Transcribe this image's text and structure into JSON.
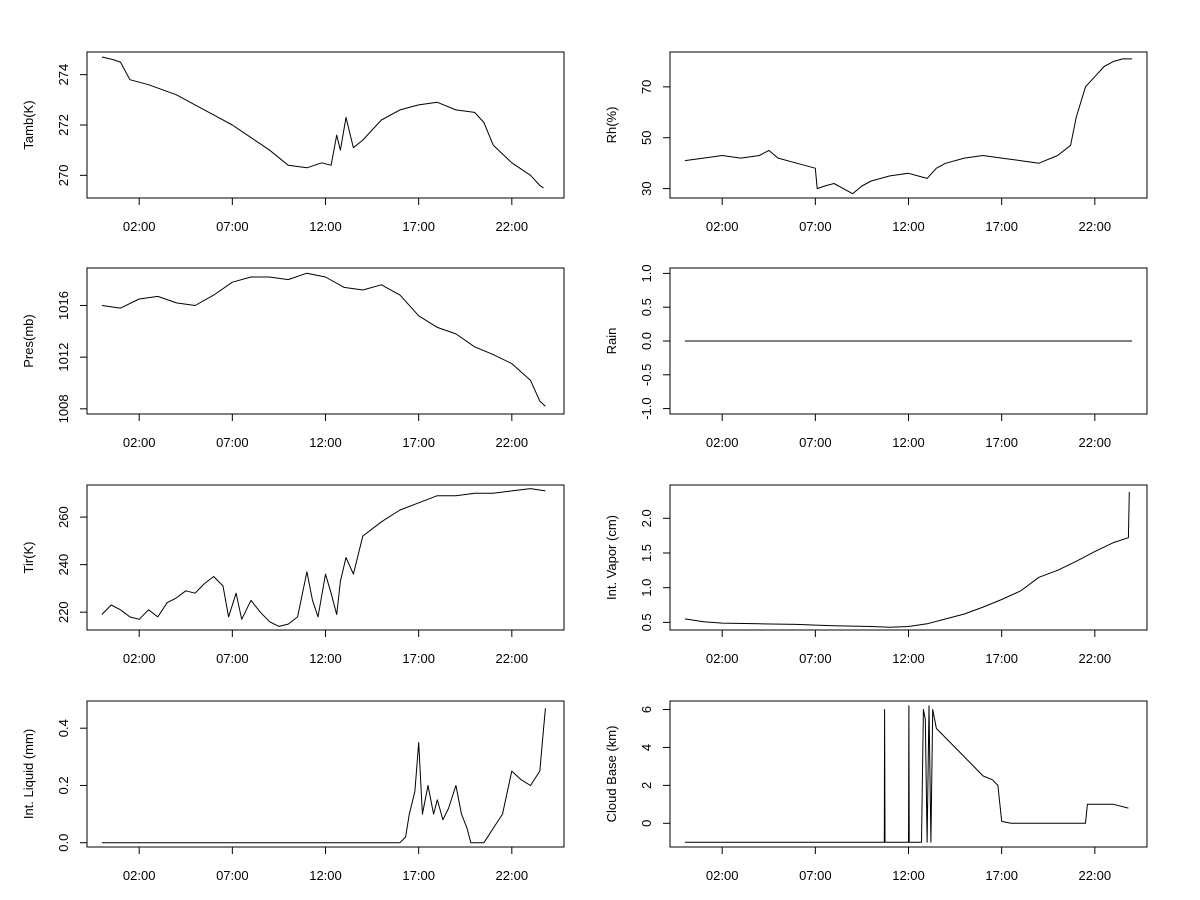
{
  "chart_data": [
    {
      "type": "line",
      "ylabel": "Tamb(K)",
      "x_ticks": [
        "02:00",
        "07:00",
        "12:00",
        "17:00",
        "22:00"
      ],
      "x_range_hours": [
        -0.8,
        24.8
      ],
      "y_ticks": [
        270,
        272,
        274
      ],
      "ylim": [
        269.1,
        274.9
      ],
      "series": [
        {
          "points": [
            [
              0.0,
              274.7
            ],
            [
              0.6,
              274.6
            ],
            [
              1.0,
              274.5
            ],
            [
              1.5,
              273.8
            ],
            [
              2.5,
              273.6
            ],
            [
              4.0,
              273.2
            ],
            [
              5.0,
              272.8
            ],
            [
              6.0,
              272.4
            ],
            [
              7.0,
              272.0
            ],
            [
              8.0,
              271.5
            ],
            [
              9.0,
              271.0
            ],
            [
              9.5,
              270.7
            ],
            [
              10.0,
              270.4
            ],
            [
              11.0,
              270.3
            ],
            [
              11.8,
              270.5
            ],
            [
              12.3,
              270.4
            ],
            [
              12.6,
              271.6
            ],
            [
              12.8,
              271.0
            ],
            [
              13.1,
              272.3
            ],
            [
              13.5,
              271.1
            ],
            [
              14.0,
              271.4
            ],
            [
              15.0,
              272.2
            ],
            [
              16.0,
              272.6
            ],
            [
              17.0,
              272.8
            ],
            [
              18.0,
              272.9
            ],
            [
              19.0,
              272.6
            ],
            [
              20.0,
              272.5
            ],
            [
              20.5,
              272.1
            ],
            [
              21.0,
              271.2
            ],
            [
              22.0,
              270.5
            ],
            [
              23.0,
              270.0
            ],
            [
              23.5,
              269.6
            ],
            [
              23.7,
              269.5
            ]
          ]
        }
      ]
    },
    {
      "type": "line",
      "ylabel": "Rh(%)",
      "x_ticks": [
        "02:00",
        "07:00",
        "12:00",
        "17:00",
        "22:00"
      ],
      "x_range_hours": [
        -0.8,
        24.8
      ],
      "y_ticks": [
        30,
        50,
        70
      ],
      "ylim": [
        26.3,
        83.7
      ],
      "series": [
        {
          "points": [
            [
              0.0,
              41
            ],
            [
              1.0,
              42
            ],
            [
              2.0,
              43
            ],
            [
              3.0,
              42
            ],
            [
              4.0,
              43
            ],
            [
              4.5,
              45
            ],
            [
              5.0,
              42
            ],
            [
              6.0,
              40
            ],
            [
              6.5,
              39
            ],
            [
              7.0,
              38
            ],
            [
              7.1,
              30
            ],
            [
              7.5,
              31
            ],
            [
              8.0,
              32
            ],
            [
              8.5,
              30
            ],
            [
              9.0,
              28
            ],
            [
              9.5,
              31
            ],
            [
              10.0,
              33
            ],
            [
              11.0,
              35
            ],
            [
              12.0,
              36
            ],
            [
              12.5,
              35
            ],
            [
              13.0,
              34
            ],
            [
              13.5,
              38
            ],
            [
              14.0,
              40
            ],
            [
              15.0,
              42
            ],
            [
              16.0,
              43
            ],
            [
              17.0,
              42
            ],
            [
              18.0,
              41
            ],
            [
              19.0,
              40
            ],
            [
              20.0,
              43
            ],
            [
              20.7,
              47
            ],
            [
              21.0,
              58
            ],
            [
              21.5,
              70
            ],
            [
              22.0,
              74
            ],
            [
              22.5,
              78
            ],
            [
              23.0,
              80
            ],
            [
              23.5,
              81
            ],
            [
              24.0,
              81
            ]
          ]
        }
      ]
    },
    {
      "type": "line",
      "ylabel": "Pres(mb)",
      "x_ticks": [
        "02:00",
        "07:00",
        "12:00",
        "17:00",
        "22:00"
      ],
      "x_range_hours": [
        -0.8,
        24.8
      ],
      "y_ticks": [
        1008,
        1012,
        1016
      ],
      "ylim": [
        1007.6,
        1018.9
      ],
      "series": [
        {
          "points": [
            [
              0.0,
              1016.0
            ],
            [
              1.0,
              1015.8
            ],
            [
              2.0,
              1016.5
            ],
            [
              3.0,
              1016.7
            ],
            [
              4.0,
              1016.2
            ],
            [
              5.0,
              1016.0
            ],
            [
              6.0,
              1016.8
            ],
            [
              7.0,
              1017.8
            ],
            [
              8.0,
              1018.2
            ],
            [
              9.0,
              1018.2
            ],
            [
              10.0,
              1018.0
            ],
            [
              11.0,
              1018.5
            ],
            [
              12.0,
              1018.2
            ],
            [
              13.0,
              1017.4
            ],
            [
              14.0,
              1017.2
            ],
            [
              15.0,
              1017.6
            ],
            [
              16.0,
              1016.8
            ],
            [
              17.0,
              1015.2
            ],
            [
              18.0,
              1014.3
            ],
            [
              19.0,
              1013.8
            ],
            [
              20.0,
              1012.8
            ],
            [
              21.0,
              1012.2
            ],
            [
              22.0,
              1011.5
            ],
            [
              23.0,
              1010.2
            ],
            [
              23.5,
              1008.6
            ],
            [
              23.8,
              1008.2
            ]
          ]
        }
      ]
    },
    {
      "type": "line",
      "ylabel": "Rain",
      "x_ticks": [
        "02:00",
        "07:00",
        "12:00",
        "17:00",
        "22:00"
      ],
      "x_range_hours": [
        -0.8,
        24.8
      ],
      "y_ticks": [
        "-1.0",
        "-0.5",
        "0.0",
        "0.5",
        "1.0"
      ],
      "ylim": [
        -1.08,
        1.08
      ],
      "series": [
        {
          "points": [
            [
              0.0,
              0.0
            ],
            [
              24.0,
              0.0
            ]
          ]
        }
      ]
    },
    {
      "type": "line",
      "ylabel": "Tir(K)",
      "x_ticks": [
        "02:00",
        "07:00",
        "12:00",
        "17:00",
        "22:00"
      ],
      "x_range_hours": [
        -0.8,
        24.8
      ],
      "y_ticks": [
        220,
        240,
        260
      ],
      "ylim": [
        212.5,
        273.5
      ],
      "series": [
        {
          "points": [
            [
              0.0,
              219
            ],
            [
              0.5,
              223
            ],
            [
              1.0,
              221
            ],
            [
              1.5,
              218
            ],
            [
              2.0,
              217
            ],
            [
              2.5,
              221
            ],
            [
              3.0,
              218
            ],
            [
              3.5,
              224
            ],
            [
              4.0,
              226
            ],
            [
              4.5,
              229
            ],
            [
              5.0,
              228
            ],
            [
              5.5,
              232
            ],
            [
              6.0,
              235
            ],
            [
              6.5,
              231
            ],
            [
              6.8,
              218
            ],
            [
              7.2,
              228
            ],
            [
              7.5,
              217
            ],
            [
              8.0,
              225
            ],
            [
              8.5,
              220
            ],
            [
              9.0,
              216
            ],
            [
              9.5,
              214
            ],
            [
              10.0,
              215
            ],
            [
              10.5,
              218
            ],
            [
              11.0,
              237
            ],
            [
              11.3,
              225
            ],
            [
              11.6,
              218
            ],
            [
              12.0,
              236
            ],
            [
              12.3,
              228
            ],
            [
              12.6,
              219
            ],
            [
              12.8,
              233
            ],
            [
              13.1,
              243
            ],
            [
              13.5,
              236
            ],
            [
              14.0,
              252
            ],
            [
              15.0,
              258
            ],
            [
              16.0,
              263
            ],
            [
              17.0,
              266
            ],
            [
              18.0,
              269
            ],
            [
              19.0,
              269
            ],
            [
              20.0,
              270
            ],
            [
              21.0,
              270
            ],
            [
              22.0,
              271
            ],
            [
              23.0,
              272
            ],
            [
              23.8,
              271
            ]
          ]
        }
      ]
    },
    {
      "type": "line",
      "ylabel": "Int. Vapor (cm)",
      "x_ticks": [
        "02:00",
        "07:00",
        "12:00",
        "17:00",
        "22:00"
      ],
      "x_range_hours": [
        -0.8,
        24.8
      ],
      "y_ticks": [
        "0.5",
        "1.0",
        "1.5",
        "2.0"
      ],
      "ylim": [
        0.39,
        2.48
      ],
      "series": [
        {
          "points": [
            [
              0.0,
              0.55
            ],
            [
              1.0,
              0.51
            ],
            [
              2.0,
              0.49
            ],
            [
              4.0,
              0.48
            ],
            [
              6.0,
              0.47
            ],
            [
              7.0,
              0.46
            ],
            [
              8.0,
              0.45
            ],
            [
              10.0,
              0.44
            ],
            [
              11.0,
              0.43
            ],
            [
              12.0,
              0.44
            ],
            [
              13.0,
              0.48
            ],
            [
              14.0,
              0.55
            ],
            [
              15.0,
              0.62
            ],
            [
              16.0,
              0.72
            ],
            [
              17.0,
              0.83
            ],
            [
              18.0,
              0.95
            ],
            [
              19.0,
              1.15
            ],
            [
              20.0,
              1.25
            ],
            [
              21.0,
              1.38
            ],
            [
              22.0,
              1.52
            ],
            [
              23.0,
              1.65
            ],
            [
              23.8,
              1.72
            ],
            [
              23.85,
              2.38
            ]
          ]
        }
      ]
    },
    {
      "type": "line",
      "ylabel": "Int. Liquid (mm)",
      "x_ticks": [
        "02:00",
        "07:00",
        "12:00",
        "17:00",
        "22:00"
      ],
      "x_range_hours": [
        -0.8,
        24.8
      ],
      "y_ticks": [
        "0.0",
        "0.2",
        "0.4"
      ],
      "ylim": [
        -0.015,
        0.495
      ],
      "series": [
        {
          "points": [
            [
              0.0,
              0.0
            ],
            [
              16.0,
              0.0
            ],
            [
              16.3,
              0.02
            ],
            [
              16.5,
              0.1
            ],
            [
              16.8,
              0.18
            ],
            [
              17.0,
              0.35
            ],
            [
              17.2,
              0.1
            ],
            [
              17.5,
              0.2
            ],
            [
              17.8,
              0.1
            ],
            [
              18.0,
              0.15
            ],
            [
              18.3,
              0.08
            ],
            [
              18.6,
              0.12
            ],
            [
              19.0,
              0.2
            ],
            [
              19.3,
              0.1
            ],
            [
              19.6,
              0.05
            ],
            [
              19.8,
              0.0
            ],
            [
              20.5,
              0.0
            ],
            [
              21.0,
              0.05
            ],
            [
              21.5,
              0.1
            ],
            [
              22.0,
              0.25
            ],
            [
              22.5,
              0.22
            ],
            [
              23.0,
              0.2
            ],
            [
              23.5,
              0.25
            ],
            [
              23.8,
              0.47
            ]
          ]
        }
      ]
    },
    {
      "type": "line",
      "ylabel": "Cloud Base (km)",
      "x_ticks": [
        "02:00",
        "07:00",
        "12:00",
        "17:00",
        "22:00"
      ],
      "x_range_hours": [
        -0.8,
        24.8
      ],
      "y_ticks": [
        0,
        2,
        4,
        6
      ],
      "ylim": [
        -1.25,
        6.45
      ],
      "series": [
        {
          "points": [
            [
              0.0,
              -1
            ],
            [
              10.7,
              -1
            ],
            [
              10.72,
              6
            ],
            [
              10.74,
              -1
            ],
            [
              12.0,
              -1
            ],
            [
              12.02,
              6.2
            ],
            [
              12.04,
              -1
            ],
            [
              12.7,
              -1
            ],
            [
              12.8,
              6
            ],
            [
              12.9,
              5.5
            ],
            [
              13.0,
              -1
            ],
            [
              13.1,
              6.2
            ],
            [
              13.2,
              -1
            ],
            [
              13.3,
              6
            ],
            [
              13.5,
              5
            ],
            [
              14.0,
              4.5
            ],
            [
              15.0,
              3.5
            ],
            [
              15.5,
              3.0
            ],
            [
              16.0,
              2.5
            ],
            [
              16.5,
              2.3
            ],
            [
              16.8,
              2.0
            ],
            [
              17.0,
              0.1
            ],
            [
              17.5,
              0.0
            ],
            [
              18.0,
              0.0
            ],
            [
              20.0,
              0.0
            ],
            [
              21.0,
              0.0
            ],
            [
              21.5,
              0.0
            ],
            [
              21.6,
              1.0
            ],
            [
              22.0,
              1.0
            ],
            [
              23.0,
              1.0
            ],
            [
              23.8,
              0.8
            ]
          ]
        }
      ]
    }
  ]
}
